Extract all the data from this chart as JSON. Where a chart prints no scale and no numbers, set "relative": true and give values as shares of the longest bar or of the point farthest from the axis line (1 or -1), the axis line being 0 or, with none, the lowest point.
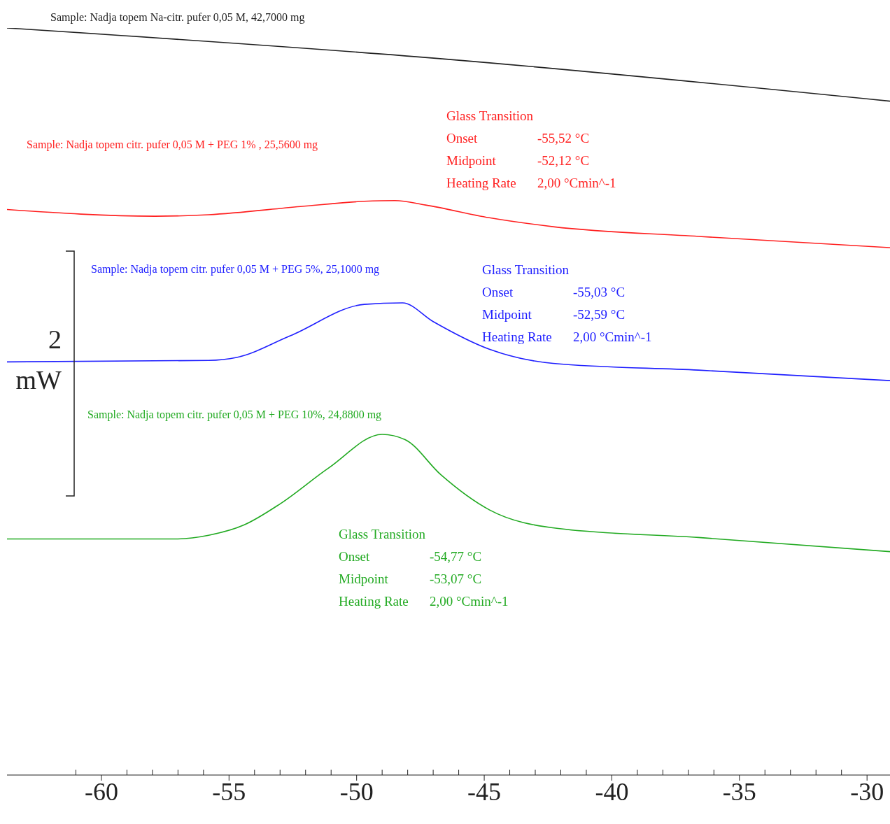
{
  "chart_data": {
    "type": "line",
    "relative": true,
    "xlim": [
      -63.7,
      -29.1
    ],
    "xticks": [
      {
        "value": -61,
        "label": null
      },
      -60,
      {
        "value": -59,
        "label": null
      },
      {
        "value": -58,
        "label": null
      },
      {
        "value": -57,
        "label": null
      },
      {
        "value": -56,
        "label": null
      },
      -55,
      {
        "value": -54,
        "label": null
      },
      {
        "value": -53,
        "label": null
      },
      {
        "value": -52,
        "label": null
      },
      {
        "value": -51,
        "label": null
      },
      -50,
      {
        "value": -49,
        "label": null
      },
      {
        "value": -48,
        "label": null
      },
      {
        "value": -47,
        "label": null
      },
      {
        "value": -46,
        "label": null
      },
      -45,
      {
        "value": -44,
        "label": null
      },
      {
        "value": -43,
        "label": null
      },
      {
        "value": -42,
        "label": null
      },
      {
        "value": -41,
        "label": null
      },
      -40,
      {
        "value": -39,
        "label": null
      },
      {
        "value": -38,
        "label": null
      },
      {
        "value": -37,
        "label": null
      },
      {
        "value": -36,
        "label": null
      },
      -35,
      {
        "value": -34,
        "label": null
      },
      {
        "value": -33,
        "label": null
      },
      {
        "value": -32,
        "label": null
      },
      {
        "value": -31,
        "label": null
      },
      -30
    ],
    "tick_labels": "x",
    "marker": "none",
    "line_style": "solid",
    "series": [
      {
        "name": "Sample: Nadja topem Na-citr. pufer 0,05 M, 42,7000 mg",
        "color": "#222222",
        "x": [
          -63.7,
          -46.4,
          -29.1
        ],
        "values": [
          1.0,
          0.958,
          0.902
        ]
      },
      {
        "name": "Sample: Nadja topem citr. pufer 0,05 M + PEG 1% , 25,5600 mg",
        "color": "#ff2020",
        "x": [
          -63.7,
          -57.9,
          -55.8,
          -52.2,
          -49.7,
          -48.5,
          -47.3,
          -44.8,
          -42.3,
          -36.6,
          -29.1
        ],
        "values": [
          0.757,
          0.748,
          0.75,
          0.761,
          0.768,
          0.769,
          0.763,
          0.746,
          0.734,
          0.721,
          0.706
        ]
      },
      {
        "name": "Sample: Nadja topem citr. pufer 0,05 M + PEG 5%, 25,1000 mg",
        "color": "#2020ff",
        "x": [
          -63.7,
          -55.8,
          -54.7,
          -52.6,
          -49.7,
          -48.2,
          -47.0,
          -44.8,
          -42.3,
          -36.6,
          -29.1
        ],
        "values": [
          0.553,
          0.555,
          0.559,
          0.588,
          0.63,
          0.632,
          0.607,
          0.57,
          0.551,
          0.542,
          0.528
        ]
      },
      {
        "name": "Sample: Nadja topem citr. pufer 0,05 M + PEG 10%, 24,8800 mg",
        "color": "#22aa22",
        "x": [
          -63.7,
          -57.1,
          -55.8,
          -54.4,
          -53.0,
          -51.1,
          -49.0,
          -48.1,
          -46.7,
          -44.8,
          -42.1,
          -36.6,
          -29.1
        ],
        "values": [
          0.316,
          0.316,
          0.321,
          0.335,
          0.363,
          0.411,
          0.456,
          0.449,
          0.402,
          0.355,
          0.33,
          0.318,
          0.299
        ]
      }
    ],
    "annotations": [
      "2 mW",
      "Glass Transition\nOnset\t-55,52 °C\nMidpoint\t-52,12 °C\nHeating Rate\t2,00 °Cmin^-1",
      "Glass Transition\nOnset\t-55,03 °C\nMidpoint\t-52,59 °C\nHeating Rate\t2,00 °Cmin^-1",
      "Glass Transition\nOnset\t-54,77 °C\nMidpoint\t-53,07 °C\nHeating Rate\t2,00 °Cmin^-1"
    ]
  }
}
